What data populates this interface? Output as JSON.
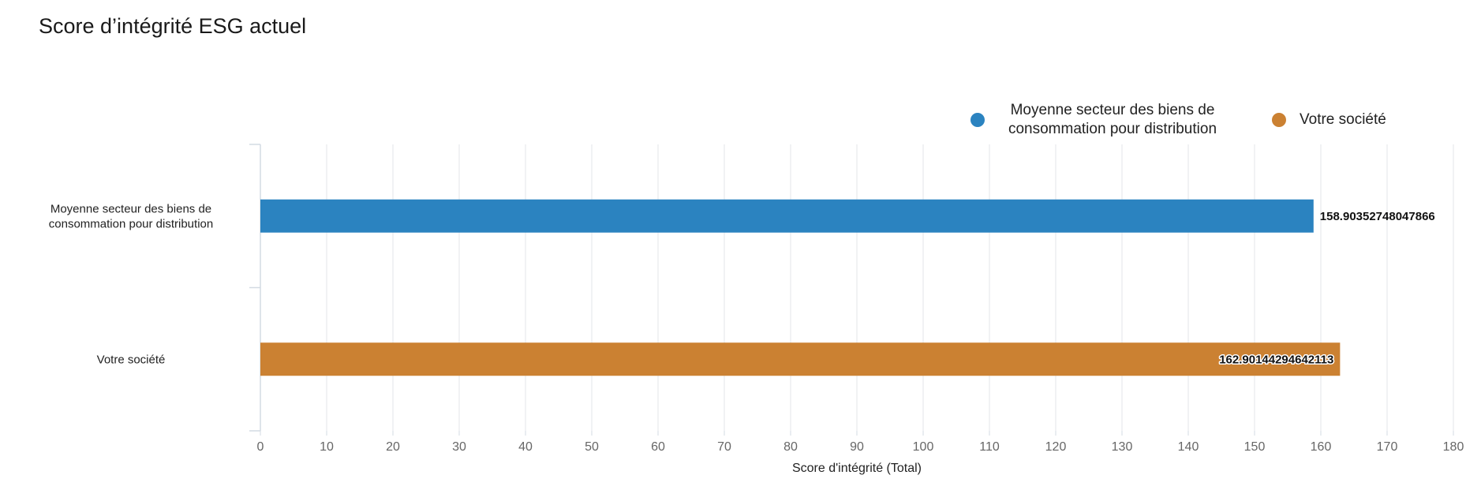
{
  "title": "Score d’intégrité ESG actuel",
  "legend": [
    {
      "label": "Moyenne secteur des biens de consommation pour distribution",
      "color": "#2b83c0"
    },
    {
      "label": "Votre société",
      "color": "#cb8132"
    }
  ],
  "chart_data": {
    "type": "bar",
    "orientation": "horizontal",
    "title": "Score d’intégrité ESG actuel",
    "categories": [
      "Moyenne secteur des biens de consommation pour distribution",
      "Votre société"
    ],
    "category_label_lines": [
      [
        "Moyenne secteur des biens de",
        "consommation pour distribution"
      ],
      [
        "Votre société"
      ]
    ],
    "values": [
      158.90352748047866,
      162.90144294642113
    ],
    "value_labels": [
      "158.90352748047866",
      "162.90144294642113"
    ],
    "colors": [
      "#2b83c0",
      "#cb8132"
    ],
    "xlabel": "Score d'intégrité (Total)",
    "ylabel": "",
    "xlim": [
      0,
      180
    ],
    "xticks": [
      0,
      10,
      20,
      30,
      40,
      50,
      60,
      70,
      80,
      90,
      100,
      110,
      120,
      130,
      140,
      150,
      160,
      170,
      180
    ],
    "grid": true,
    "legend_position": "top-right"
  }
}
